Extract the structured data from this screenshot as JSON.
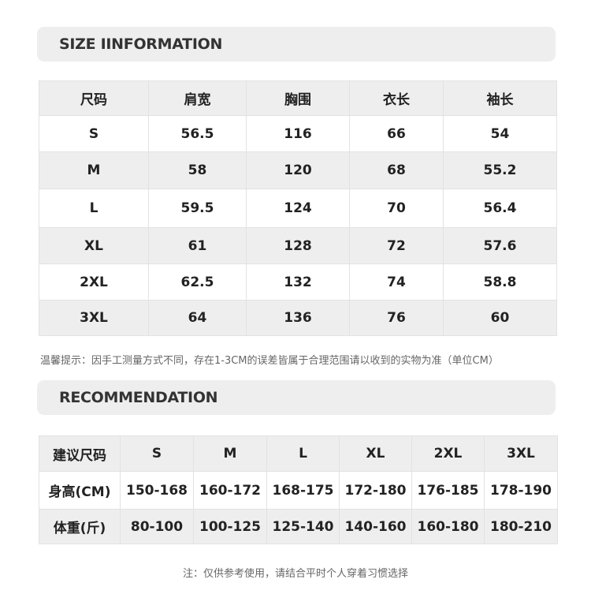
{
  "size_info": {
    "title": "SIZE IINFORMATION",
    "headers": [
      "尺码",
      "肩宽",
      "胸围",
      "衣长",
      "袖长"
    ],
    "rows": [
      [
        "S",
        "56.5",
        "116",
        "66",
        "54"
      ],
      [
        "M",
        "58",
        "120",
        "68",
        "55.2"
      ],
      [
        "L",
        "59.5",
        "124",
        "70",
        "56.4"
      ],
      [
        "XL",
        "61",
        "128",
        "72",
        "57.6"
      ],
      [
        "2XL",
        "62.5",
        "132",
        "74",
        "58.8"
      ],
      [
        "3XL",
        "64",
        "136",
        "76",
        "60"
      ]
    ],
    "note": "温馨提示：因手工测量方式不同，存在1-3CM的误差皆属于合理范围请以收到的实物为准（单位CM）"
  },
  "recommendation": {
    "title": "RECOMMENDATION",
    "headers": [
      "建议尺码",
      "S",
      "M",
      "L",
      "XL",
      "2XL",
      "3XL"
    ],
    "rows": [
      [
        "身高(CM)",
        "150-168",
        "160-172",
        "168-175",
        "172-180",
        "176-185",
        "178-190"
      ],
      [
        "体重(斤)",
        "80-100",
        "100-125",
        "125-140",
        "140-160",
        "160-180",
        "180-210"
      ]
    ],
    "note": "注：仅供参考使用，请结合平时个人穿着习惯选择"
  }
}
